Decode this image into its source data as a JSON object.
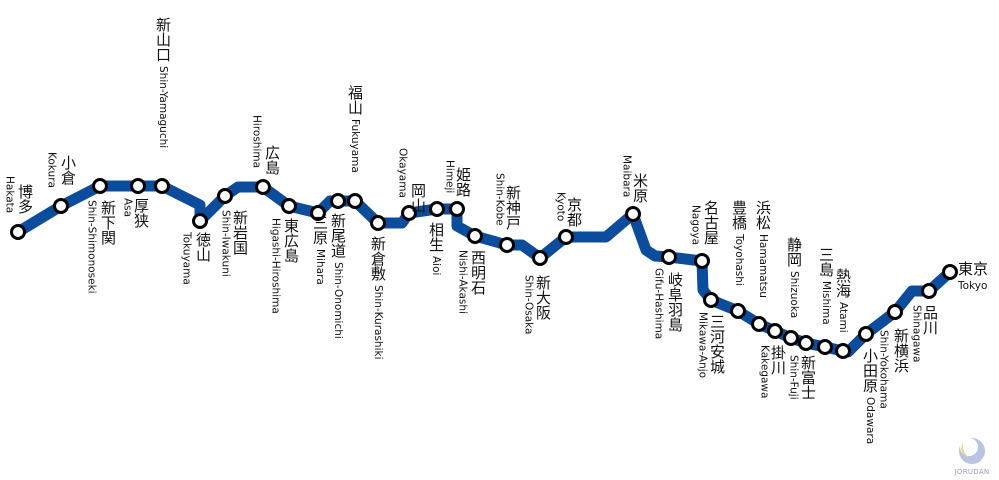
{
  "line_color": "#0b4c9c",
  "stations": [
    {
      "kanji": "博多",
      "romaji": "Hakata"
    },
    {
      "kanji": "小倉",
      "romaji": "Kokura"
    },
    {
      "kanji": "新下関",
      "romaji": "Shin-Shimonoseki"
    },
    {
      "kanji": "厚狭",
      "romaji": "Asa"
    },
    {
      "kanji": "新山口",
      "romaji": "Shin-Yamaguchi"
    },
    {
      "kanji": "徳山",
      "romaji": "Tokuyama"
    },
    {
      "kanji": "新岩国",
      "romaji": "Shin-Iwakuni"
    },
    {
      "kanji": "広島",
      "romaji": "Hiroshima"
    },
    {
      "kanji": "東広島",
      "romaji": "Higashi-Hiroshima"
    },
    {
      "kanji": "三原",
      "romaji": "Mihara"
    },
    {
      "kanji": "新尾道",
      "romaji": "Shin-Onomichi"
    },
    {
      "kanji": "福山",
      "romaji": "Fukuyama"
    },
    {
      "kanji": "新倉敷",
      "romaji": "Shin-Kurashiki"
    },
    {
      "kanji": "岡山",
      "romaji": "Okayama"
    },
    {
      "kanji": "相生",
      "romaji": "Aioi"
    },
    {
      "kanji": "姫路",
      "romaji": "Himeji"
    },
    {
      "kanji": "西明石",
      "romaji": "Nishi-Akashi"
    },
    {
      "kanji": "新神戸",
      "romaji": "Shin-Kobe"
    },
    {
      "kanji": "新大阪",
      "romaji": "Shin-Osaka"
    },
    {
      "kanji": "京都",
      "romaji": "Kyoto"
    },
    {
      "kanji": "米原",
      "romaji": "Maibara"
    },
    {
      "kanji": "岐阜羽島",
      "romaji": "Gifu-Hashima"
    },
    {
      "kanji": "名古屋",
      "romaji": "Nagoya"
    },
    {
      "kanji": "三河安城",
      "romaji": "Mikawa-Anjo"
    },
    {
      "kanji": "豊橋",
      "romaji": "Toyohashi"
    },
    {
      "kanji": "浜松",
      "romaji": "Hamamatsu"
    },
    {
      "kanji": "掛川",
      "romaji": "Kakegawa"
    },
    {
      "kanji": "静岡",
      "romaji": "Shizuoka"
    },
    {
      "kanji": "新富士",
      "romaji": "Shin-Fuji"
    },
    {
      "kanji": "三島",
      "romaji": "Mishima"
    },
    {
      "kanji": "熱海",
      "romaji": "Atami"
    },
    {
      "kanji": "小田原",
      "romaji": "Odawara"
    },
    {
      "kanji": "新横浜",
      "romaji": "Shin-Yokohama"
    },
    {
      "kanji": "品川",
      "romaji": "Shinagawa"
    },
    {
      "kanji": "東京",
      "romaji": "Tokyo"
    }
  ],
  "logo": {
    "text": "JORUDAN"
  }
}
